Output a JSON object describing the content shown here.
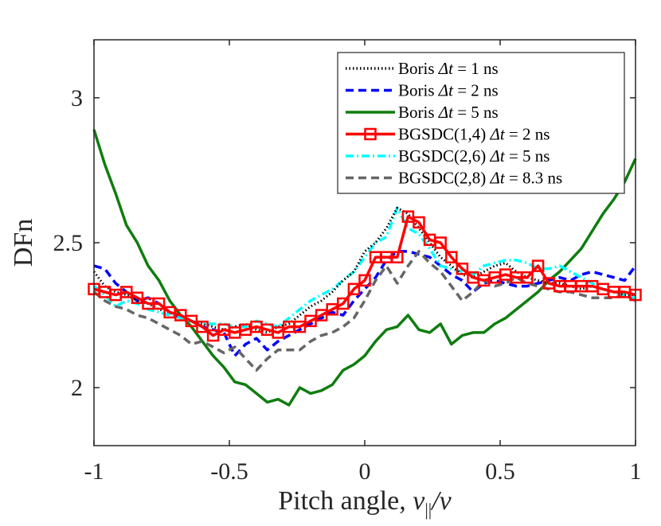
{
  "chart_data": {
    "type": "line",
    "title": "",
    "xlabel": "Pitch angle, v_{||}/v",
    "xlabel_parts": {
      "prefix": "Pitch angle, ",
      "var": "v",
      "sub": "||",
      "suffix": "/v"
    },
    "ylabel": "DFn",
    "xlim": [
      -1,
      1
    ],
    "ylim": [
      1.8,
      3.2
    ],
    "xticks": [
      -1,
      -0.5,
      0,
      0.5,
      1
    ],
    "xtick_labels": [
      "-1",
      "-0.5",
      "0",
      "0.5",
      "1"
    ],
    "yticks": [
      2,
      2.5,
      3
    ],
    "ytick_labels": [
      "2",
      "2.5",
      "3"
    ],
    "grid": false,
    "legend_position": "top-right",
    "series": [
      {
        "name": "Boris Δt = 1 ns",
        "label_parts": {
          "prefix": "Boris ",
          "var": "Δt",
          "suffix": " = 1 ns"
        },
        "color": "#000000",
        "style": "dotted",
        "marker": "none",
        "x": [
          -1.0,
          -0.96,
          -0.92,
          -0.88,
          -0.84,
          -0.8,
          -0.76,
          -0.72,
          -0.68,
          -0.64,
          -0.6,
          -0.56,
          -0.52,
          -0.48,
          -0.44,
          -0.4,
          -0.36,
          -0.32,
          -0.28,
          -0.24,
          -0.2,
          -0.16,
          -0.12,
          -0.08,
          -0.04,
          0.0,
          0.04,
          0.08,
          0.12,
          0.16,
          0.2,
          0.24,
          0.28,
          0.32,
          0.36,
          0.4,
          0.44,
          0.48,
          0.52,
          0.56,
          0.6,
          0.64,
          0.68,
          0.72,
          0.76,
          0.8,
          0.84,
          0.88,
          0.92,
          0.96,
          1.0
        ],
        "y": [
          2.4,
          2.35,
          2.33,
          2.32,
          2.3,
          2.29,
          2.27,
          2.26,
          2.25,
          2.23,
          2.22,
          2.21,
          2.2,
          2.21,
          2.22,
          2.2,
          2.19,
          2.21,
          2.22,
          2.25,
          2.28,
          2.3,
          2.33,
          2.37,
          2.4,
          2.47,
          2.5,
          2.55,
          2.62,
          2.6,
          2.55,
          2.5,
          2.45,
          2.42,
          2.39,
          2.38,
          2.4,
          2.42,
          2.43,
          2.4,
          2.38,
          2.37,
          2.36,
          2.36,
          2.35,
          2.34,
          2.35,
          2.34,
          2.33,
          2.32,
          2.32
        ]
      },
      {
        "name": "Boris Δt = 2 ns",
        "label_parts": {
          "prefix": "Boris ",
          "var": "Δt",
          "suffix": " = 2 ns"
        },
        "color": "#0000ff",
        "style": "dashed",
        "marker": "none",
        "x": [
          -1.0,
          -0.96,
          -0.92,
          -0.88,
          -0.84,
          -0.8,
          -0.76,
          -0.72,
          -0.68,
          -0.64,
          -0.6,
          -0.56,
          -0.52,
          -0.48,
          -0.44,
          -0.4,
          -0.36,
          -0.32,
          -0.28,
          -0.24,
          -0.2,
          -0.16,
          -0.12,
          -0.08,
          -0.04,
          0.0,
          0.04,
          0.08,
          0.12,
          0.16,
          0.2,
          0.24,
          0.28,
          0.32,
          0.36,
          0.4,
          0.44,
          0.48,
          0.52,
          0.56,
          0.6,
          0.64,
          0.68,
          0.72,
          0.76,
          0.8,
          0.84,
          0.88,
          0.92,
          0.96,
          1.0
        ],
        "y": [
          2.42,
          2.41,
          2.36,
          2.33,
          2.3,
          2.31,
          2.29,
          2.26,
          2.24,
          2.23,
          2.21,
          2.2,
          2.19,
          2.11,
          2.15,
          2.17,
          2.13,
          2.16,
          2.18,
          2.2,
          2.22,
          2.24,
          2.26,
          2.25,
          2.3,
          2.34,
          2.38,
          2.44,
          2.47,
          2.47,
          2.46,
          2.45,
          2.42,
          2.39,
          2.37,
          2.33,
          2.36,
          2.37,
          2.36,
          2.35,
          2.35,
          2.36,
          2.37,
          2.38,
          2.37,
          2.39,
          2.4,
          2.39,
          2.38,
          2.37,
          2.42
        ]
      },
      {
        "name": "Boris Δt = 5 ns",
        "label_parts": {
          "prefix": "Boris ",
          "var": "Δt",
          "suffix": " = 5 ns"
        },
        "color": "#0f7d0f",
        "style": "solid",
        "marker": "none",
        "x": [
          -1.0,
          -0.96,
          -0.92,
          -0.88,
          -0.84,
          -0.8,
          -0.76,
          -0.72,
          -0.68,
          -0.64,
          -0.6,
          -0.56,
          -0.52,
          -0.48,
          -0.44,
          -0.4,
          -0.36,
          -0.32,
          -0.28,
          -0.24,
          -0.2,
          -0.16,
          -0.12,
          -0.08,
          -0.04,
          0.0,
          0.04,
          0.08,
          0.12,
          0.16,
          0.2,
          0.24,
          0.28,
          0.32,
          0.36,
          0.4,
          0.44,
          0.48,
          0.52,
          0.56,
          0.6,
          0.64,
          0.68,
          0.72,
          0.76,
          0.8,
          0.84,
          0.88,
          0.92,
          0.96,
          1.0
        ],
        "y": [
          2.89,
          2.77,
          2.67,
          2.56,
          2.5,
          2.42,
          2.37,
          2.3,
          2.25,
          2.21,
          2.16,
          2.11,
          2.07,
          2.02,
          2.01,
          1.98,
          1.95,
          1.96,
          1.94,
          2.0,
          1.98,
          1.99,
          2.01,
          2.06,
          2.08,
          2.11,
          2.16,
          2.2,
          2.21,
          2.25,
          2.2,
          2.19,
          2.22,
          2.15,
          2.18,
          2.19,
          2.19,
          2.22,
          2.24,
          2.27,
          2.3,
          2.33,
          2.37,
          2.4,
          2.44,
          2.48,
          2.54,
          2.6,
          2.65,
          2.71,
          2.79
        ]
      },
      {
        "name": "BGSDC(1,4) Δt = 2 ns",
        "label_parts": {
          "prefix": "BGSDC(1,4) ",
          "var": "Δt",
          "suffix": " = 2 ns"
        },
        "color": "#ff0000",
        "style": "solid",
        "marker": "square",
        "x": [
          -1.0,
          -0.96,
          -0.92,
          -0.88,
          -0.84,
          -0.8,
          -0.76,
          -0.72,
          -0.68,
          -0.64,
          -0.6,
          -0.56,
          -0.52,
          -0.48,
          -0.44,
          -0.4,
          -0.36,
          -0.32,
          -0.28,
          -0.24,
          -0.2,
          -0.16,
          -0.12,
          -0.08,
          -0.04,
          0.0,
          0.04,
          0.08,
          0.12,
          0.16,
          0.2,
          0.24,
          0.28,
          0.32,
          0.36,
          0.4,
          0.44,
          0.48,
          0.52,
          0.56,
          0.6,
          0.64,
          0.68,
          0.72,
          0.76,
          0.8,
          0.84,
          0.88,
          0.92,
          0.96,
          1.0
        ],
        "y": [
          2.34,
          2.33,
          2.32,
          2.33,
          2.31,
          2.29,
          2.29,
          2.26,
          2.25,
          2.23,
          2.21,
          2.18,
          2.2,
          2.19,
          2.2,
          2.21,
          2.2,
          2.19,
          2.21,
          2.21,
          2.23,
          2.25,
          2.27,
          2.29,
          2.34,
          2.37,
          2.45,
          2.45,
          2.45,
          2.59,
          2.57,
          2.51,
          2.5,
          2.45,
          2.41,
          2.38,
          2.37,
          2.38,
          2.39,
          2.38,
          2.38,
          2.42,
          2.36,
          2.35,
          2.35,
          2.35,
          2.35,
          2.34,
          2.33,
          2.33,
          2.32
        ]
      },
      {
        "name": "BGSDC(2,6) Δt = 5 ns",
        "label_parts": {
          "prefix": "BGSDC(2,6) ",
          "var": "Δt",
          "suffix": " = 5 ns"
        },
        "color": "#00ffff",
        "style": "dashdot",
        "marker": "none",
        "x": [
          -1.0,
          -0.96,
          -0.92,
          -0.88,
          -0.84,
          -0.8,
          -0.76,
          -0.72,
          -0.68,
          -0.64,
          -0.6,
          -0.56,
          -0.52,
          -0.48,
          -0.44,
          -0.4,
          -0.36,
          -0.32,
          -0.28,
          -0.24,
          -0.2,
          -0.16,
          -0.12,
          -0.08,
          -0.04,
          0.0,
          0.04,
          0.08,
          0.12,
          0.16,
          0.2,
          0.24,
          0.28,
          0.32,
          0.36,
          0.4,
          0.44,
          0.48,
          0.52,
          0.56,
          0.6,
          0.64,
          0.68,
          0.72,
          0.76,
          0.8,
          0.84,
          0.88,
          0.92,
          0.96,
          1.0
        ],
        "y": [
          2.35,
          2.32,
          2.28,
          2.3,
          2.29,
          2.27,
          2.26,
          2.25,
          2.24,
          2.23,
          2.22,
          2.22,
          2.22,
          2.21,
          2.21,
          2.23,
          2.22,
          2.21,
          2.24,
          2.27,
          2.3,
          2.32,
          2.34,
          2.37,
          2.4,
          2.45,
          2.5,
          2.52,
          2.62,
          2.55,
          2.53,
          2.48,
          2.42,
          2.41,
          2.4,
          2.39,
          2.42,
          2.43,
          2.44,
          2.44,
          2.43,
          2.41,
          2.41,
          2.42,
          2.4,
          2.38,
          2.36,
          2.34,
          2.33,
          2.32,
          2.31
        ]
      },
      {
        "name": "BGSDC(2,8) Δt = 8.3 ns",
        "label_parts": {
          "prefix": "BGSDC(2,8) ",
          "var": "Δt",
          "suffix": " = 8.3 ns"
        },
        "color": "#666666",
        "style": "dashed",
        "marker": "none",
        "x": [
          -1.0,
          -0.96,
          -0.92,
          -0.88,
          -0.84,
          -0.8,
          -0.76,
          -0.72,
          -0.68,
          -0.64,
          -0.6,
          -0.56,
          -0.52,
          -0.48,
          -0.44,
          -0.4,
          -0.36,
          -0.32,
          -0.28,
          -0.24,
          -0.2,
          -0.16,
          -0.12,
          -0.08,
          -0.04,
          0.0,
          0.04,
          0.08,
          0.12,
          0.16,
          0.2,
          0.24,
          0.28,
          0.32,
          0.36,
          0.4,
          0.44,
          0.48,
          0.52,
          0.56,
          0.6,
          0.64,
          0.68,
          0.72,
          0.76,
          0.8,
          0.84,
          0.88,
          0.92,
          0.96,
          1.0
        ],
        "y": [
          2.33,
          2.3,
          2.28,
          2.27,
          2.25,
          2.24,
          2.22,
          2.2,
          2.18,
          2.15,
          2.16,
          2.14,
          2.12,
          2.14,
          2.1,
          2.06,
          2.1,
          2.13,
          2.13,
          2.13,
          2.16,
          2.18,
          2.19,
          2.21,
          2.24,
          2.3,
          2.37,
          2.42,
          2.36,
          2.42,
          2.47,
          2.43,
          2.4,
          2.35,
          2.3,
          2.33,
          2.37,
          2.35,
          2.36,
          2.38,
          2.36,
          2.35,
          2.34,
          2.33,
          2.33,
          2.32,
          2.31,
          2.31,
          2.31,
          2.32,
          2.3
        ]
      }
    ]
  }
}
